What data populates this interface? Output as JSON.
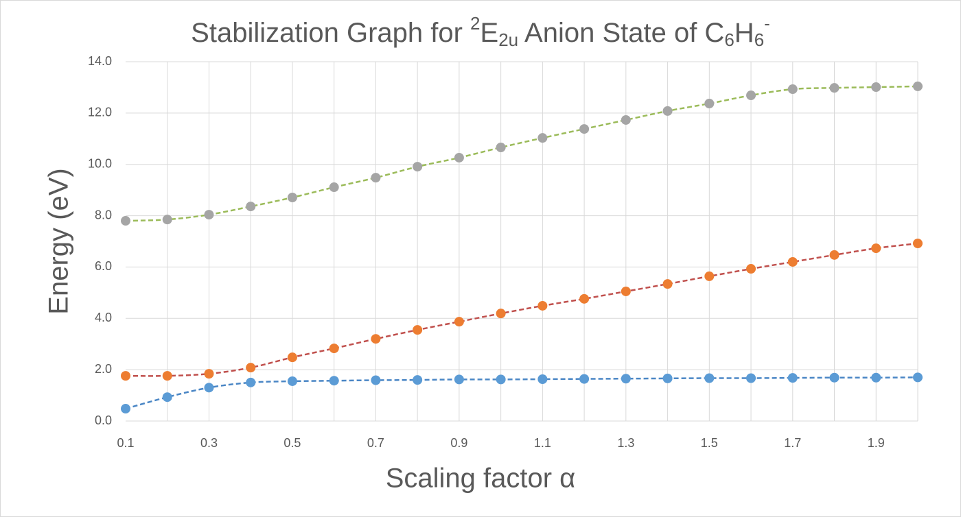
{
  "chart_data": {
    "type": "line",
    "title": [
      {
        "text": "Stabilization Graph for "
      },
      {
        "text": "2",
        "baseline": "super"
      },
      {
        "text": "E"
      },
      {
        "text": "2u",
        "baseline": "sub"
      },
      {
        "text": " Anion State of C"
      },
      {
        "text": "6",
        "baseline": "sub"
      },
      {
        "text": "H"
      },
      {
        "text": "6",
        "baseline": "sub"
      },
      {
        "text": "-",
        "baseline": "super"
      }
    ],
    "x_label": "Scaling factor α",
    "y_label": "Energy (eV)",
    "x": [
      0.1,
      0.2,
      0.3,
      0.4,
      0.5,
      0.6,
      0.7,
      0.8,
      0.9,
      1.0,
      1.1,
      1.2,
      1.3,
      1.4,
      1.5,
      1.6,
      1.7,
      1.8,
      1.9,
      2.0
    ],
    "xlim": [
      0.1,
      2.0
    ],
    "xticks": [
      0.1,
      0.3,
      0.5,
      0.7,
      0.9,
      1.1,
      1.3,
      1.5,
      1.7,
      1.9
    ],
    "xgridlines": [
      0.2,
      0.3,
      0.4,
      0.5,
      0.6,
      0.7,
      0.8,
      0.9,
      1.0,
      1.1,
      1.2,
      1.3,
      1.4,
      1.5,
      1.6,
      1.7,
      1.8,
      1.9,
      2.0
    ],
    "ylim": [
      0,
      14
    ],
    "yticks": [
      {
        "value": 0,
        "label": "0.0"
      },
      {
        "value": 2,
        "label": "2.0"
      },
      {
        "value": 4,
        "label": "4.0"
      },
      {
        "value": 6,
        "label": "6.0"
      },
      {
        "value": 8,
        "label": "8.0"
      },
      {
        "value": 10,
        "label": "10.0"
      },
      {
        "value": 12,
        "label": "12.0"
      },
      {
        "value": 14,
        "label": "14.0"
      }
    ],
    "grid": true,
    "line_style": "dashed",
    "series": [
      {
        "color": "#5b9bd5",
        "line_color": "#4a86c5",
        "values": [
          0.48,
          0.93,
          1.3,
          1.5,
          1.55,
          1.57,
          1.59,
          1.6,
          1.62,
          1.62,
          1.63,
          1.64,
          1.65,
          1.66,
          1.67,
          1.67,
          1.68,
          1.69,
          1.69,
          1.7
        ]
      },
      {
        "color": "#ed7d31",
        "line_color": "#c0504d",
        "values": [
          1.76,
          1.76,
          1.84,
          2.08,
          2.48,
          2.83,
          3.2,
          3.55,
          3.87,
          4.19,
          4.49,
          4.76,
          5.05,
          5.34,
          5.64,
          5.93,
          6.2,
          6.47,
          6.73,
          6.92
        ]
      },
      {
        "color": "#a5a5a5",
        "line_color": "#9bbb59",
        "values": [
          7.8,
          7.85,
          8.04,
          8.36,
          8.71,
          9.11,
          9.48,
          9.91,
          10.26,
          10.66,
          11.03,
          11.38,
          11.73,
          12.08,
          12.37,
          12.69,
          12.93,
          12.98,
          13.01,
          13.04
        ]
      }
    ]
  }
}
